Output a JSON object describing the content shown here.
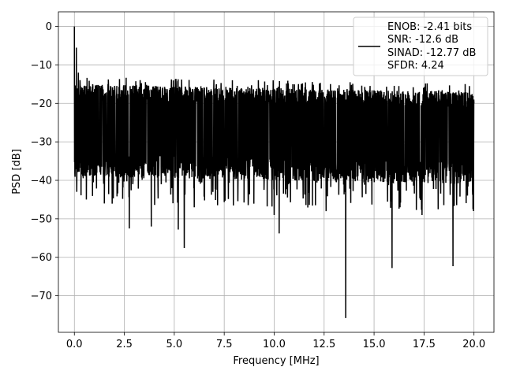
{
  "chart_data": {
    "type": "line",
    "xlabel": "Frequency [MHz]",
    "ylabel": "PSD [dB]",
    "xlim": [
      -0.8,
      21.0
    ],
    "ylim": [
      -79.5,
      3.8
    ],
    "xticks": [
      0.0,
      2.5,
      5.0,
      7.5,
      10.0,
      12.5,
      15.0,
      17.5,
      20.0
    ],
    "xtick_labels": [
      "0.0",
      "2.5",
      "5.0",
      "7.5",
      "10.0",
      "12.5",
      "15.0",
      "17.5",
      "20.0"
    ],
    "yticks": [
      0,
      -10,
      -20,
      -30,
      -40,
      -50,
      -60,
      -70
    ],
    "ytick_labels": [
      "0",
      "−10",
      "−20",
      "−30",
      "−40",
      "−50",
      "−60",
      "−70"
    ],
    "grid": true,
    "legend_position": "top-right",
    "series": [
      {
        "color": "#000000",
        "line_width": 1.5,
        "x_range": [
          0.0,
          20.0
        ],
        "noise_band_db": [
          -36,
          -18
        ],
        "spikes_up": [
          [
            0.0,
            0.0
          ],
          [
            0.1,
            -5.5
          ],
          [
            0.2,
            -12.0
          ],
          [
            9.95,
            -14.0
          ]
        ],
        "spikes_down": [
          [
            0.12,
            -43.0
          ],
          [
            0.6,
            -45.0
          ],
          [
            1.5,
            -46.0
          ],
          [
            2.75,
            -52.5
          ],
          [
            3.85,
            -52.0
          ],
          [
            5.2,
            -52.8
          ],
          [
            5.5,
            -57.6
          ],
          [
            6.0,
            -47.0
          ],
          [
            10.0,
            -49.0
          ],
          [
            10.25,
            -53.8
          ],
          [
            12.6,
            -48.0
          ],
          [
            13.58,
            -75.8
          ],
          [
            15.9,
            -62.8
          ],
          [
            16.3,
            -47.0
          ],
          [
            17.4,
            -49.0
          ],
          [
            18.95,
            -62.3
          ],
          [
            19.95,
            -47.5
          ]
        ]
      }
    ],
    "legend": [
      "ENOB: -2.41 bits",
      "SNR: -12.6 dB",
      "SINAD: -12.77 dB",
      "SFDR: 4.24"
    ]
  }
}
